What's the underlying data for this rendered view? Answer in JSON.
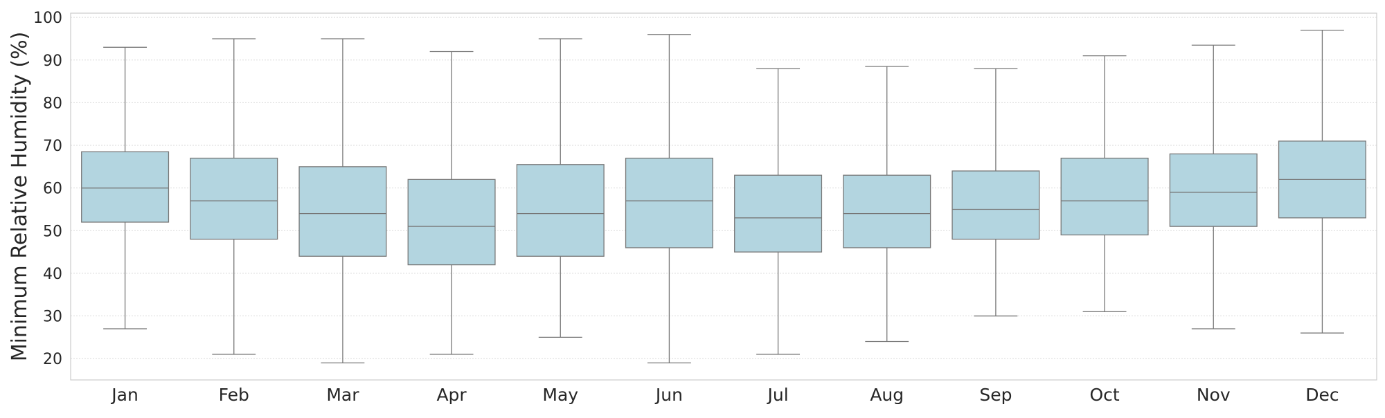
{
  "chart_data": {
    "type": "box",
    "title": "",
    "xlabel": "",
    "ylabel": "Minimum Relative Humidity (%)",
    "ylim": [
      15,
      101
    ],
    "yticks": [
      20,
      30,
      40,
      50,
      60,
      70,
      80,
      90,
      100
    ],
    "grid": "horizontal",
    "box_color": "#b3d5e0",
    "line_color": "#777777",
    "categories": [
      "Jan",
      "Feb",
      "Mar",
      "Apr",
      "May",
      "Jun",
      "Jul",
      "Aug",
      "Sep",
      "Oct",
      "Nov",
      "Dec"
    ],
    "boxes": [
      {
        "label": "Jan",
        "whisker_low": 27,
        "q1": 52,
        "median": 60,
        "q3": 68.5,
        "whisker_high": 93
      },
      {
        "label": "Feb",
        "whisker_low": 21,
        "q1": 48,
        "median": 57,
        "q3": 67,
        "whisker_high": 95
      },
      {
        "label": "Mar",
        "whisker_low": 19,
        "q1": 44,
        "median": 54,
        "q3": 65,
        "whisker_high": 95
      },
      {
        "label": "Apr",
        "whisker_low": 21,
        "q1": 42,
        "median": 51,
        "q3": 62,
        "whisker_high": 92
      },
      {
        "label": "May",
        "whisker_low": 25,
        "q1": 44,
        "median": 54,
        "q3": 65.5,
        "whisker_high": 95
      },
      {
        "label": "Jun",
        "whisker_low": 19,
        "q1": 46,
        "median": 57,
        "q3": 67,
        "whisker_high": 96
      },
      {
        "label": "Jul",
        "whisker_low": 21,
        "q1": 45,
        "median": 53,
        "q3": 63,
        "whisker_high": 88
      },
      {
        "label": "Aug",
        "whisker_low": 24,
        "q1": 46,
        "median": 54,
        "q3": 63,
        "whisker_high": 88.5
      },
      {
        "label": "Sep",
        "whisker_low": 30,
        "q1": 48,
        "median": 55,
        "q3": 64,
        "whisker_high": 88
      },
      {
        "label": "Oct",
        "whisker_low": 31,
        "q1": 49,
        "median": 57,
        "q3": 67,
        "whisker_high": 91
      },
      {
        "label": "Nov",
        "whisker_low": 27,
        "q1": 51,
        "median": 59,
        "q3": 68,
        "whisker_high": 93.5
      },
      {
        "label": "Dec",
        "whisker_low": 26,
        "q1": 53,
        "median": 62,
        "q3": 71,
        "whisker_high": 97
      }
    ]
  }
}
